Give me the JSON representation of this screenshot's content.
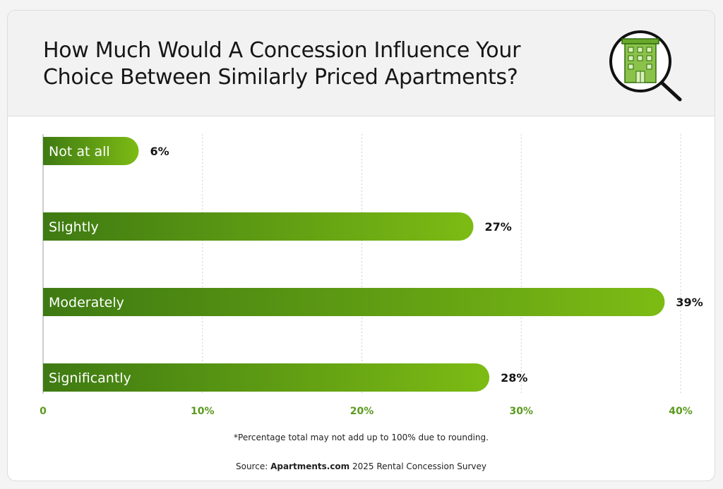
{
  "header": {
    "title": "How Much Would A Concession Influence Your Choice Between Similarly Priced Apartments?"
  },
  "icon": {
    "name": "building-magnifier-icon"
  },
  "chart_data": {
    "type": "bar",
    "orientation": "horizontal",
    "title": "How Much Would A Concession Influence Your Choice Between Similarly Priced Apartments?",
    "categories": [
      "Not at all",
      "Slightly",
      "Moderately",
      "Significantly"
    ],
    "values": [
      6,
      27,
      39,
      28
    ],
    "value_labels": [
      "6%",
      "27%",
      "39%",
      "28%"
    ],
    "xlim": [
      0,
      40
    ],
    "xticks": [
      0,
      10,
      20,
      30,
      40
    ],
    "xtick_labels": [
      "0",
      "10%",
      "20%",
      "30%",
      "40%"
    ],
    "grid": "vertical-dotted",
    "xlabel": "",
    "ylabel": ""
  },
  "footnote": "*Percentage total may not add up to 100% due to rounding.",
  "source": {
    "prefix": "Source: ",
    "brand": "Apartments.com",
    "suffix": " 2025 Rental Concession Survey"
  },
  "colors": {
    "bar_dark": "#3e7a12",
    "bar_light": "#7dbb14",
    "tick": "#5a9a1e",
    "grid": "#cfcfcf"
  }
}
